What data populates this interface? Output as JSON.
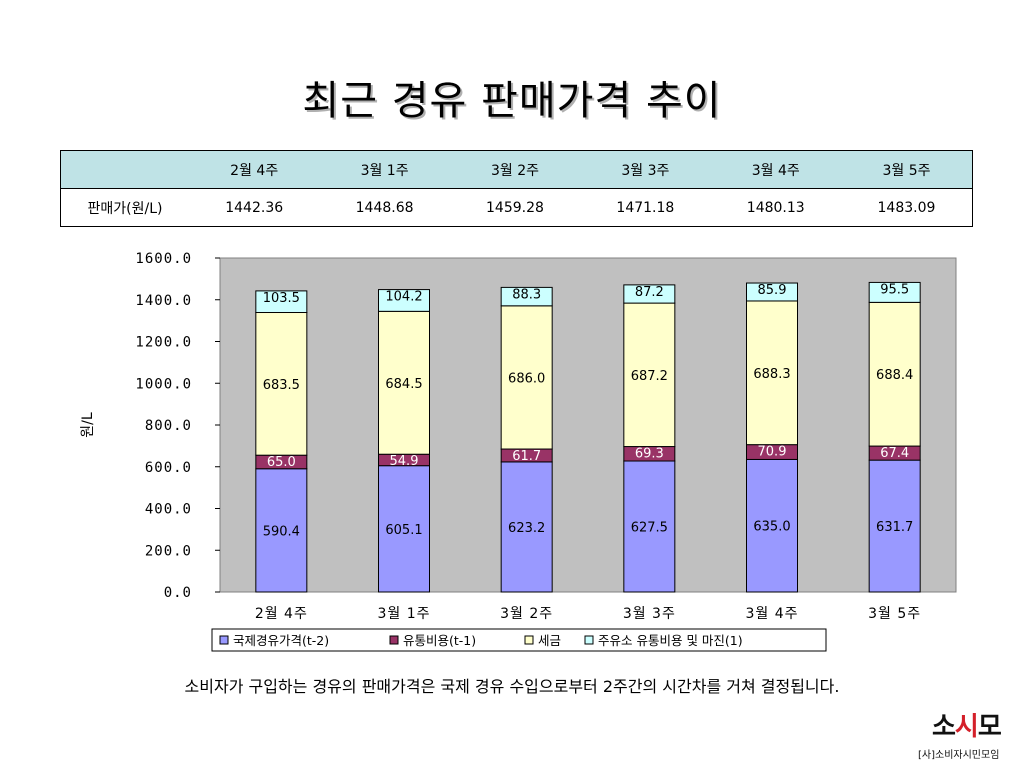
{
  "title": "최근 경유 판매가격 추이",
  "price_table": {
    "row_label": "판매가(원/L)",
    "columns": [
      "2월 4주",
      "3월 1주",
      "3월 2주",
      "3월 3주",
      "3월 4주",
      "3월 5주"
    ],
    "values": [
      "1442.36",
      "1448.68",
      "1459.28",
      "1471.18",
      "1480.13",
      "1483.09"
    ]
  },
  "chart_data": {
    "type": "bar",
    "stacked": true,
    "categories": [
      "2월 4주",
      "3월 1주",
      "3월 2주",
      "3월 3주",
      "3월 4주",
      "3월 5주"
    ],
    "series": [
      {
        "name": "국제경유가격(t-2)",
        "color": "#9999ff",
        "values": [
          590.4,
          605.1,
          623.2,
          627.5,
          635.0,
          631.7
        ]
      },
      {
        "name": "유통비용(t-1)",
        "color": "#993366",
        "values": [
          65.0,
          54.9,
          61.7,
          69.3,
          70.9,
          67.4
        ]
      },
      {
        "name": "세금",
        "color": "#ffffcc",
        "values": [
          683.5,
          684.5,
          686.0,
          687.2,
          688.3,
          688.4
        ]
      },
      {
        "name": "주유소 유통비용 및 마진(1)",
        "color": "#ccffff",
        "values": [
          103.5,
          104.2,
          88.3,
          87.2,
          85.9,
          95.5
        ]
      }
    ],
    "data_labels": [
      [
        "590.4",
        "605.1",
        "623.2",
        "627.5",
        "635.0",
        "631.7"
      ],
      [
        "65.0",
        "54.9",
        "61.7",
        "69.3",
        "70.9",
        "67.4"
      ],
      [
        "683.5",
        "684.5",
        "686.0",
        "687.2",
        "688.3",
        "688.4"
      ],
      [
        "103.5",
        "104.2",
        "88.3",
        "87.2",
        "85.9",
        "95.5"
      ]
    ],
    "yticks": [
      "0.0",
      "200.0",
      "400.0",
      "600.0",
      "800.0",
      "1000.0",
      "1200.0",
      "1400.0",
      "1600.0"
    ],
    "xticks": [
      "2월  4주",
      "3월  1주",
      "3월  2주",
      "3월  3주",
      "3월  4주",
      "3월  5주"
    ],
    "ylabel": "원/L",
    "xlabel": "",
    "ylim": [
      0,
      1600
    ],
    "plot_background": "#c0c0c0",
    "legend_position": "bottom",
    "grid": false
  },
  "caption": "소비자가 구입하는 경유의 판매가격은 국제 경유 수입으로부터 2주간의 시간차를 거쳐 결정됩니다.",
  "logo": {
    "mark_left": "소",
    "mark_dot": "시",
    "mark_right": "모",
    "sub": "[사]소비자시민모임"
  }
}
